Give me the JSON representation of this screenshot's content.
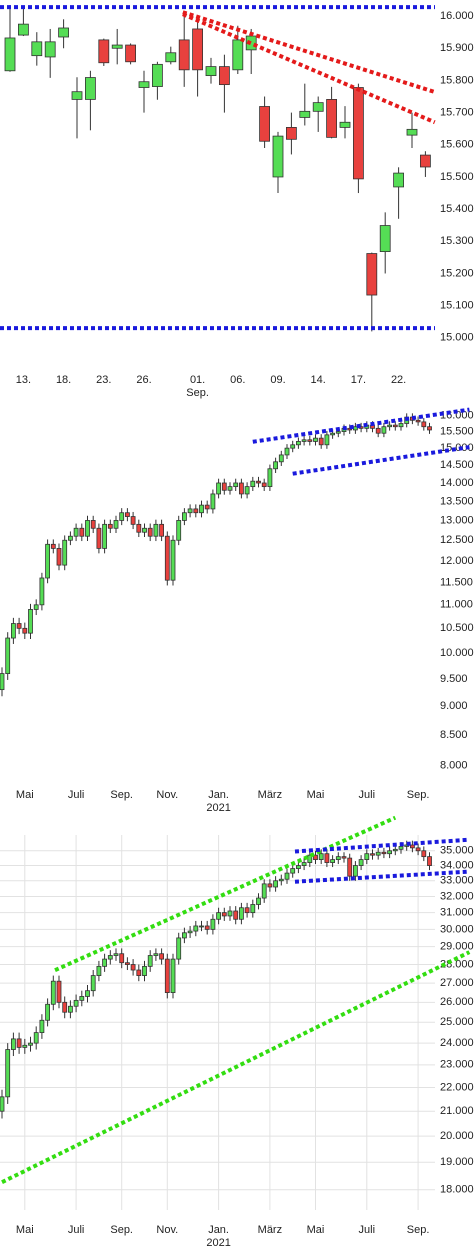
{
  "chart_data": [
    {
      "type": "candlestick",
      "log_scale": false,
      "grid": false,
      "up_color": "#55dd55",
      "down_color": "#e8413e",
      "categories": [
        null,
        "13.",
        null,
        null,
        "18.",
        null,
        null,
        "23.",
        null,
        null,
        "26.",
        null,
        null,
        null,
        "01.\nSep.",
        null,
        null,
        "06.",
        null,
        null,
        "09.",
        null,
        null,
        "14.",
        null,
        null,
        "17.",
        null,
        null,
        "22.",
        null,
        null
      ],
      "open": [
        15830,
        15941,
        15877,
        15873,
        15935,
        15741,
        15741,
        15926,
        15900,
        15910,
        15778,
        15781,
        15858,
        15926,
        15960,
        15815,
        15843,
        15833,
        15895,
        15719,
        15500,
        15654,
        15685,
        15704,
        15741,
        15654,
        15778,
        15262,
        15268,
        15469,
        15630,
        15568
      ],
      "high": [
        16034,
        16025,
        15950,
        15960,
        15990,
        15810,
        15830,
        15930,
        15960,
        15915,
        15830,
        15858,
        15905,
        16010,
        15990,
        15870,
        15880,
        15970,
        15960,
        15750,
        15640,
        15700,
        15790,
        15750,
        15780,
        15720,
        15790,
        15265,
        15390,
        15530,
        15700,
        15580
      ],
      "low": [
        15827,
        15938,
        15846,
        15808,
        15900,
        15620,
        15645,
        15845,
        15850,
        15850,
        15700,
        15740,
        15850,
        15780,
        15750,
        15790,
        15700,
        15820,
        15820,
        15590,
        15450,
        15570,
        15660,
        15640,
        15620,
        15620,
        15450,
        15020,
        15200,
        15370,
        15590,
        15500
      ],
      "close": [
        15932,
        15975,
        15920,
        15920,
        15963,
        15765,
        15809,
        15855,
        15910,
        15858,
        15796,
        15850,
        15886,
        15833,
        15833,
        15843,
        15787,
        15926,
        15938,
        15611,
        15627,
        15617,
        15704,
        15731,
        15623,
        15670,
        15494,
        15133,
        15349,
        15512,
        15648,
        15531
      ],
      "ylim": [
        14900,
        16050
      ],
      "yticks": [
        {
          "value": 16000,
          "label": "16.000"
        },
        {
          "value": 15900,
          "label": "15.900"
        },
        {
          "value": 15800,
          "label": "15.800"
        },
        {
          "value": 15700,
          "label": "15.700"
        },
        {
          "value": 15600,
          "label": "15.600"
        },
        {
          "value": 15500,
          "label": "15.500"
        },
        {
          "value": 15400,
          "label": "15.400"
        },
        {
          "value": 15300,
          "label": "15.300"
        },
        {
          "value": 15200,
          "label": "15.200"
        },
        {
          "value": 15100,
          "label": "15.100"
        },
        {
          "value": 15000,
          "label": "15.000"
        }
      ],
      "hlines": [
        {
          "color": "#1a1add",
          "value": 16028
        },
        {
          "color": "#1a1add",
          "value": 15030
        }
      ],
      "trendlines": [
        {
          "color": "#e41a1a",
          "x": [
            12.9,
            31.7
          ],
          "y": [
            16012,
            15764
          ]
        },
        {
          "color": "#e41a1a",
          "x": [
            12.9,
            31.7
          ],
          "y": [
            16006,
            15670
          ]
        }
      ]
    },
    {
      "type": "candlestick",
      "log_scale": true,
      "grid": false,
      "up_color": "#55dd55",
      "down_color": "#e8413e",
      "categories": [
        null,
        null,
        null,
        null,
        "Mai",
        null,
        null,
        null,
        null,
        null,
        null,
        null,
        null,
        "Juli",
        null,
        null,
        null,
        null,
        null,
        null,
        null,
        "Sep.",
        null,
        null,
        null,
        null,
        null,
        null,
        null,
        "Nov.",
        null,
        null,
        null,
        null,
        null,
        null,
        null,
        null,
        "Jan.\n2021",
        null,
        null,
        null,
        null,
        null,
        null,
        null,
        null,
        "März",
        null,
        null,
        null,
        null,
        null,
        null,
        null,
        "Mai",
        null,
        null,
        null,
        null,
        null,
        null,
        null,
        null,
        "Juli",
        null,
        null,
        null,
        null,
        null,
        null,
        null,
        null,
        "Sep.",
        null,
        null
      ],
      "open": [
        9300,
        9600,
        10300,
        10600,
        10500,
        10400,
        10900,
        11000,
        11600,
        12400,
        12300,
        11900,
        12500,
        12600,
        12800,
        12600,
        13000,
        12800,
        12300,
        12900,
        12800,
        13000,
        13200,
        13100,
        12900,
        12700,
        12800,
        12600,
        12900,
        12600,
        11550,
        12500,
        13000,
        13200,
        13300,
        13200,
        13400,
        13300,
        13700,
        14000,
        13800,
        13900,
        14000,
        13700,
        13900,
        14050,
        14000,
        13900,
        14400,
        14600,
        14800,
        15000,
        15100,
        15200,
        15250,
        15200,
        15300,
        15100,
        15400,
        15450,
        15500,
        15600,
        15550,
        15650,
        15600,
        15700,
        15600,
        15450,
        15650,
        15700,
        15650,
        15750,
        15950,
        15850,
        15800,
        15650
      ],
      "high": [
        9720,
        10420,
        10720,
        10720,
        10620,
        11020,
        11120,
        11720,
        12520,
        12520,
        12420,
        12620,
        12720,
        12920,
        12920,
        13120,
        13120,
        12920,
        13020,
        13020,
        13120,
        13320,
        13320,
        13220,
        13020,
        12920,
        12920,
        13020,
        13020,
        12720,
        12620,
        13120,
        13320,
        13420,
        13420,
        13520,
        13520,
        13820,
        14120,
        14120,
        14020,
        14120,
        14120,
        14020,
        14170,
        14170,
        14120,
        14520,
        14720,
        14920,
        15120,
        15220,
        15320,
        15370,
        15370,
        15420,
        15420,
        15520,
        15570,
        15620,
        15720,
        15720,
        15770,
        15770,
        15820,
        15820,
        15720,
        15770,
        15820,
        15820,
        15870,
        16070,
        16070,
        15970,
        15920,
        15770
      ],
      "low": [
        9180,
        9480,
        10180,
        10380,
        10280,
        10280,
        10780,
        10880,
        11480,
        12180,
        11780,
        11780,
        12380,
        12480,
        12480,
        12480,
        12680,
        12180,
        12180,
        12680,
        12680,
        12880,
        12980,
        12780,
        12580,
        12580,
        12480,
        12480,
        12480,
        11430,
        11430,
        12380,
        12880,
        13080,
        13080,
        13080,
        13180,
        13180,
        13580,
        13680,
        13680,
        13780,
        13580,
        13580,
        13780,
        13880,
        13780,
        13780,
        14280,
        14480,
        14680,
        14880,
        14980,
        15080,
        15080,
        15080,
        14980,
        14980,
        15280,
        15330,
        15380,
        15430,
        15430,
        15480,
        15480,
        15480,
        15330,
        15330,
        15530,
        15530,
        15530,
        15630,
        15730,
        15680,
        15530,
        15430
      ],
      "close": [
        9600,
        10300,
        10600,
        10500,
        10400,
        10900,
        11000,
        11600,
        12400,
        12300,
        11900,
        12500,
        12600,
        12800,
        12600,
        13000,
        12800,
        12300,
        12900,
        12800,
        13000,
        13200,
        13100,
        12900,
        12700,
        12800,
        12600,
        12900,
        12600,
        11550,
        12500,
        13000,
        13200,
        13300,
        13200,
        13400,
        13300,
        13700,
        14000,
        13800,
        13900,
        14000,
        13700,
        13900,
        14050,
        14000,
        13900,
        14400,
        14600,
        14800,
        15000,
        15100,
        15200,
        15250,
        15200,
        15300,
        15100,
        15400,
        15450,
        15500,
        15600,
        15550,
        15650,
        15600,
        15700,
        15600,
        15450,
        15650,
        15700,
        15650,
        15750,
        15950,
        15850,
        15800,
        15650,
        15550
      ],
      "ylim": [
        7700,
        16500
      ],
      "yticks": [
        {
          "value": 16000,
          "label": "16.000"
        },
        {
          "value": 15500,
          "label": "15.500"
        },
        {
          "value": 15000,
          "label": "15.000"
        },
        {
          "value": 14500,
          "label": "14.500"
        },
        {
          "value": 14000,
          "label": "14.000"
        },
        {
          "value": 13500,
          "label": "13.500"
        },
        {
          "value": 13000,
          "label": "13.000"
        },
        {
          "value": 12500,
          "label": "12.500"
        },
        {
          "value": 12000,
          "label": "12.000"
        },
        {
          "value": 11500,
          "label": "11.500"
        },
        {
          "value": 11000,
          "label": "11.000"
        },
        {
          "value": 10500,
          "label": "10.500"
        },
        {
          "value": 10000,
          "label": "10.000"
        },
        {
          "value": 9500,
          "label": "9.500"
        },
        {
          "value": 9000,
          "label": "9.000"
        },
        {
          "value": 8500,
          "label": "8.500"
        },
        {
          "value": 8000,
          "label": "8.000"
        }
      ],
      "trendlines": [
        {
          "color": "#1a1add",
          "x": [
            44,
            82
          ],
          "y": [
            15190,
            16190
          ]
        },
        {
          "color": "#1a1add",
          "x": [
            51,
            82
          ],
          "y": [
            14260,
            15030
          ]
        }
      ]
    },
    {
      "type": "candlestick",
      "log_scale": true,
      "grid": true,
      "up_color": "#55dd55",
      "down_color": "#e8413e",
      "categories": [
        null,
        null,
        null,
        null,
        "Mai",
        null,
        null,
        null,
        null,
        null,
        null,
        null,
        null,
        "Juli",
        null,
        null,
        null,
        null,
        null,
        null,
        null,
        "Sep.",
        null,
        null,
        null,
        null,
        null,
        null,
        null,
        "Nov.",
        null,
        null,
        null,
        null,
        null,
        null,
        null,
        null,
        "Jan.\n2021",
        null,
        null,
        null,
        null,
        null,
        null,
        null,
        null,
        "März",
        null,
        null,
        null,
        null,
        null,
        null,
        null,
        "Mai",
        null,
        null,
        null,
        null,
        null,
        null,
        null,
        null,
        "Juli",
        null,
        null,
        null,
        null,
        null,
        null,
        null,
        null,
        "Sep.",
        null,
        null
      ],
      "open": [
        21000,
        21600,
        23700,
        24200,
        23800,
        23900,
        24000,
        24500,
        25100,
        25900,
        27100,
        26000,
        25500,
        25800,
        26100,
        26300,
        26600,
        27400,
        27900,
        28300,
        28500,
        28600,
        28100,
        28000,
        27700,
        27400,
        27900,
        28500,
        28600,
        28300,
        26500,
        28300,
        29500,
        29800,
        29900,
        30200,
        30200,
        30000,
        30600,
        31000,
        30800,
        31100,
        30600,
        31300,
        31000,
        31500,
        31900,
        32800,
        32600,
        33000,
        33100,
        33500,
        33800,
        34000,
        34200,
        34700,
        34400,
        34800,
        34200,
        34400,
        34600,
        34500,
        33300,
        34000,
        34400,
        34800,
        34700,
        34900,
        34800,
        35000,
        35100,
        35300,
        35400,
        35200,
        35000,
        34600
      ],
      "high": [
        21900,
        24000,
        24500,
        24500,
        24200,
        24300,
        24800,
        25400,
        26200,
        27400,
        27400,
        26300,
        26100,
        26400,
        26600,
        26900,
        27700,
        28200,
        28600,
        28800,
        28900,
        28900,
        28400,
        28300,
        28000,
        28200,
        28800,
        28900,
        28900,
        28600,
        28600,
        29800,
        30100,
        30200,
        30500,
        30500,
        30500,
        30900,
        31300,
        31300,
        31400,
        31400,
        31600,
        31600,
        31800,
        32200,
        33100,
        33100,
        33300,
        33400,
        33800,
        34100,
        34300,
        34500,
        35000,
        35000,
        35100,
        35100,
        34700,
        34900,
        34900,
        34800,
        34300,
        34700,
        35100,
        35100,
        35200,
        35200,
        35300,
        35400,
        35600,
        35700,
        35700,
        35500,
        35300,
        34900
      ],
      "low": [
        20700,
        21300,
        23400,
        23500,
        23500,
        23600,
        23700,
        24200,
        24800,
        25600,
        25700,
        25200,
        25200,
        25500,
        25800,
        26000,
        26300,
        27100,
        27600,
        28000,
        28200,
        27800,
        27700,
        27400,
        27100,
        27100,
        27600,
        28200,
        28000,
        26200,
        26200,
        28000,
        29200,
        29500,
        29600,
        29900,
        29700,
        29700,
        30300,
        30500,
        30500,
        30300,
        30300,
        30700,
        30700,
        31200,
        31600,
        32300,
        32300,
        32700,
        32800,
        33200,
        33500,
        33700,
        33900,
        34100,
        34100,
        33900,
        33900,
        34100,
        34200,
        33000,
        33000,
        33700,
        34100,
        34400,
        34400,
        34500,
        34500,
        34700,
        34800,
        35000,
        34900,
        34700,
        34300,
        33700
      ],
      "close": [
        21600,
        23700,
        24200,
        23800,
        23900,
        24000,
        24500,
        25100,
        25900,
        27100,
        26000,
        25500,
        25800,
        26100,
        26300,
        26600,
        27400,
        27900,
        28300,
        28500,
        28600,
        28100,
        28000,
        27700,
        27400,
        27900,
        28500,
        28600,
        28300,
        26500,
        28300,
        29500,
        29800,
        29900,
        30200,
        30200,
        30000,
        30600,
        31000,
        30800,
        31100,
        30600,
        31300,
        31000,
        31500,
        31900,
        32800,
        32600,
        33000,
        33100,
        33500,
        33800,
        34000,
        34200,
        34700,
        34400,
        34800,
        34200,
        34400,
        34600,
        34500,
        33300,
        34000,
        34400,
        34800,
        34700,
        34900,
        34800,
        35000,
        35100,
        35300,
        35400,
        35200,
        35000,
        34600,
        34000
      ],
      "ylim": [
        17300,
        36100
      ],
      "yticks": [
        {
          "value": 35000,
          "label": "35.000"
        },
        {
          "value": 34000,
          "label": "34.000"
        },
        {
          "value": 33000,
          "label": "33.000"
        },
        {
          "value": 32000,
          "label": "32.000"
        },
        {
          "value": 31000,
          "label": "31.000"
        },
        {
          "value": 30000,
          "label": "30.000"
        },
        {
          "value": 29000,
          "label": "29.000"
        },
        {
          "value": 28000,
          "label": "28.000"
        },
        {
          "value": 27000,
          "label": "27.000"
        },
        {
          "value": 26000,
          "label": "26.000"
        },
        {
          "value": 25000,
          "label": "25.000"
        },
        {
          "value": 24000,
          "label": "24.000"
        },
        {
          "value": 23000,
          "label": "23.000"
        },
        {
          "value": 22000,
          "label": "22.000"
        },
        {
          "value": 21000,
          "label": "21.000"
        },
        {
          "value": 20000,
          "label": "20.000"
        },
        {
          "value": 19000,
          "label": "19.000"
        },
        {
          "value": 18000,
          "label": "18.000"
        }
      ],
      "trendlines": [
        {
          "color": "#33dd11",
          "x": [
            9.3,
            69
          ],
          "y": [
            27690,
            37350
          ]
        },
        {
          "color": "#33dd11",
          "x": [
            0,
            82
          ],
          "y": [
            18270,
            28690
          ]
        },
        {
          "color": "#1a1add",
          "x": [
            51.4,
            82
          ],
          "y": [
            34950,
            35770
          ]
        },
        {
          "color": "#1a1add",
          "x": [
            51.4,
            82
          ],
          "y": [
            32940,
            33600
          ]
        }
      ]
    }
  ]
}
